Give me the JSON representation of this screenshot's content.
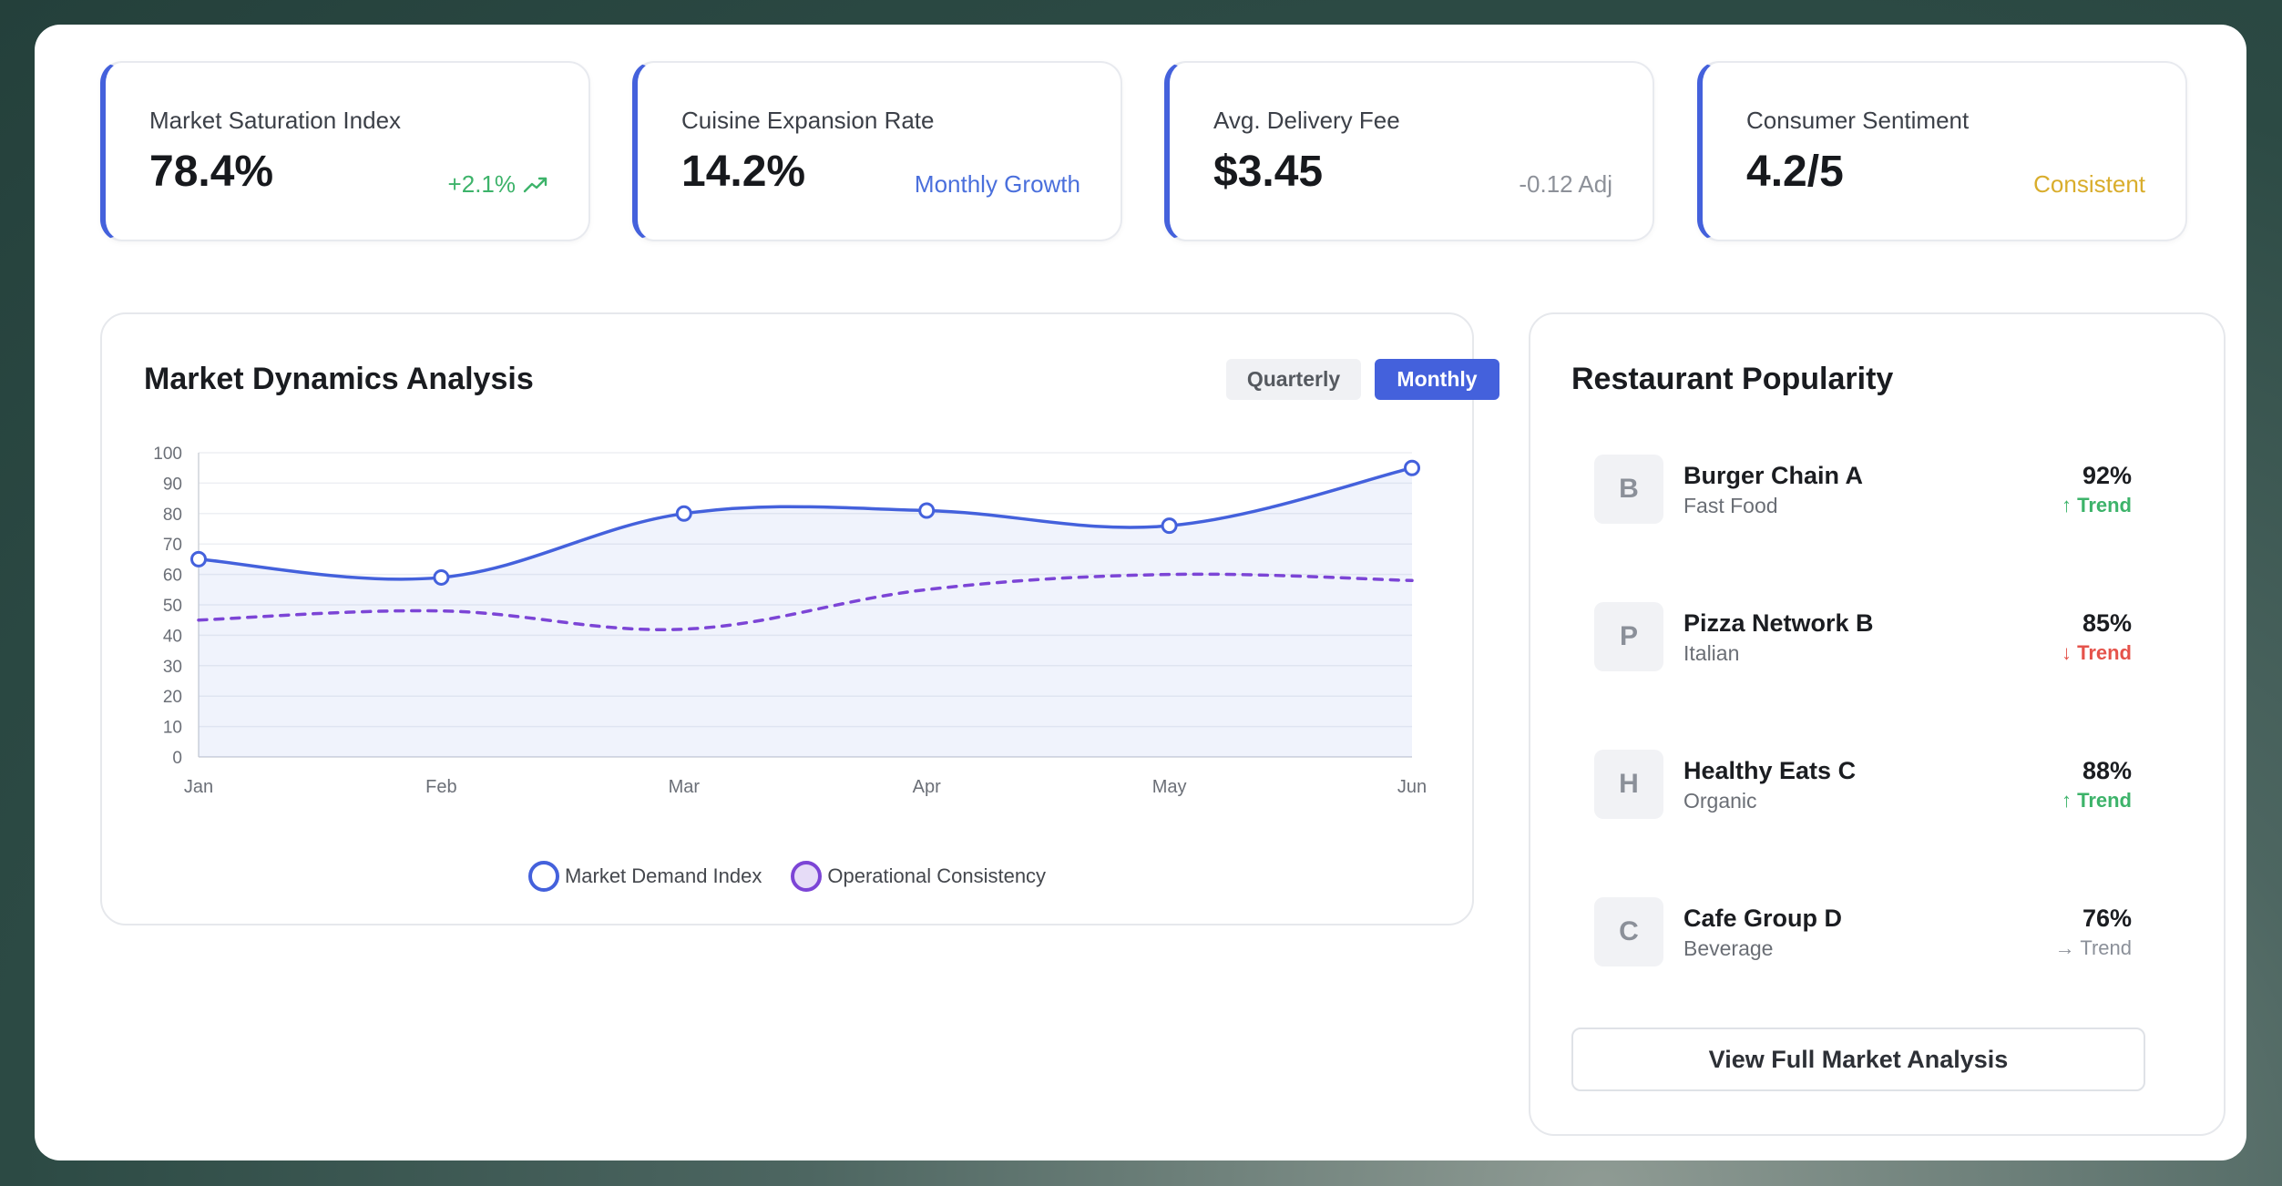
{
  "kpis": [
    {
      "label": "Market Saturation Index",
      "value": "78.4%",
      "sub": "+2.1%",
      "sub_icon": "trend-up-icon",
      "sub_color": "#3db36a"
    },
    {
      "label": "Cuisine Expansion Rate",
      "value": "14.2%",
      "sub": "Monthly Growth",
      "sub_color": "#4a6fdc"
    },
    {
      "label": "Avg. Delivery Fee",
      "value": "$3.45",
      "sub": "-0.12 Adj",
      "sub_color": "#8d9199"
    },
    {
      "label": "Consumer Sentiment",
      "value": "4.2/5",
      "sub": "Consistent",
      "sub_color": "#d9ad2c"
    }
  ],
  "chart_card": {
    "title": "Market Dynamics Analysis",
    "toggle_quarterly": "Quarterly",
    "toggle_monthly": "Monthly",
    "active_toggle": "Monthly"
  },
  "chart_data": {
    "type": "line",
    "categories": [
      "Jan",
      "Feb",
      "Mar",
      "Apr",
      "May",
      "Jun"
    ],
    "ylim": [
      0,
      100
    ],
    "yticks": [
      0,
      10,
      20,
      30,
      40,
      50,
      60,
      70,
      80,
      90,
      100
    ],
    "grid": true,
    "legend": "bottom",
    "series": [
      {
        "name": "Market Demand Index",
        "values": [
          65,
          59,
          80,
          81,
          76,
          95
        ],
        "color": "#4461dc",
        "fill": true,
        "dashed": false
      },
      {
        "name": "Operational Consistency",
        "values": [
          45,
          48,
          42,
          55,
          60,
          58
        ],
        "color": "#7c45d6",
        "fill": false,
        "dashed": true
      }
    ]
  },
  "popularity": {
    "title": "Restaurant Popularity",
    "items": [
      {
        "initial": "B",
        "name": "Burger Chain A",
        "category": "Fast Food",
        "pct": "92%",
        "trend": "↑ Trend",
        "dir": "up"
      },
      {
        "initial": "P",
        "name": "Pizza Network B",
        "category": "Italian",
        "pct": "85%",
        "trend": "↓ Trend",
        "dir": "down"
      },
      {
        "initial": "H",
        "name": "Healthy Eats C",
        "category": "Organic",
        "pct": "88%",
        "trend": "↑ Trend",
        "dir": "up"
      },
      {
        "initial": "C",
        "name": "Cafe Group D",
        "category": "Beverage",
        "pct": "76%",
        "trend": "→ Trend",
        "dir": "flat"
      }
    ],
    "button_label": "View Full Market Analysis"
  }
}
